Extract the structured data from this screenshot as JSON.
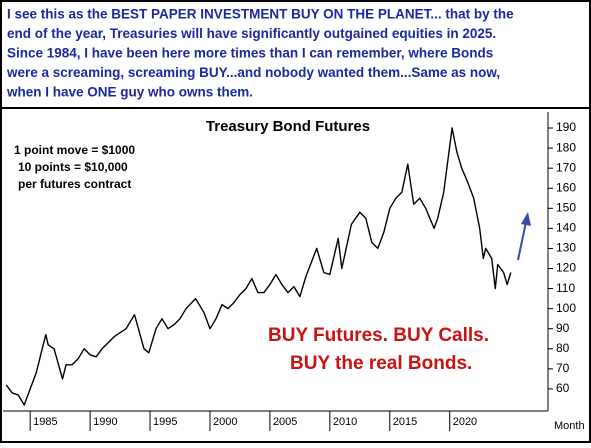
{
  "header": {
    "lines": [
      "I see this as the BEST PAPER INVESTMENT BUY ON THE PLANET... that by the",
      "end of the year, Treasuries will have significantly outgained equities in 2025.",
      "Since 1984, I have been here more times than I can remember, where Bonds",
      "were a screaming, screaming BUY...and nobody wanted them...Same as now,",
      "when I have ONE guy who owns them."
    ]
  },
  "chart_data": {
    "type": "line",
    "title": "Treasury Bond Futures",
    "x_label": "Month",
    "annotations": [
      "1 point move = $1000",
      "10 points = $10,000",
      "per futures contract",
      "BUY Futures. BUY Calls.",
      "BUY the real Bonds."
    ],
    "x": [
      1983.0,
      1983.5,
      1984.0,
      1984.5,
      1985.0,
      1985.5,
      1986.0,
      1986.3,
      1986.5,
      1987.0,
      1987.7,
      1988.0,
      1988.5,
      1989.0,
      1989.5,
      1990.0,
      1990.5,
      1991.0,
      1991.5,
      1992.0,
      1992.5,
      1993.0,
      1993.7,
      1994.5,
      1994.9,
      1995.5,
      1996.0,
      1996.5,
      1997.0,
      1997.5,
      1998.0,
      1998.8,
      1999.5,
      2000.0,
      2000.5,
      2001.0,
      2001.5,
      2002.0,
      2002.5,
      2003.0,
      2003.5,
      2004.0,
      2004.5,
      2005.0,
      2005.5,
      2006.0,
      2006.5,
      2007.0,
      2007.5,
      2008.0,
      2008.9,
      2009.5,
      2010.0,
      2010.7,
      2011.0,
      2011.8,
      2012.5,
      2013.0,
      2013.5,
      2014.0,
      2014.5,
      2015.0,
      2015.5,
      2016.0,
      2016.5,
      2017.0,
      2017.5,
      2018.0,
      2018.7,
      2019.0,
      2019.5,
      2020.2,
      2020.6,
      2021.0,
      2021.5,
      2022.0,
      2022.5,
      2022.8,
      2023.0,
      2023.5,
      2023.8,
      2024.0,
      2024.5,
      2024.8,
      2025.1
    ],
    "series": [
      {
        "name": "Treasury Bond Futures",
        "color": "#000000",
        "values": [
          62,
          58,
          57,
          52,
          60,
          68,
          80,
          87,
          82,
          80,
          65,
          72,
          72,
          75,
          80,
          77,
          76,
          80,
          83,
          86,
          88,
          90,
          97,
          80,
          78,
          90,
          95,
          90,
          92,
          95,
          100,
          105,
          98,
          90,
          95,
          102,
          100,
          103,
          107,
          110,
          115,
          108,
          108,
          112,
          117,
          112,
          108,
          111,
          106,
          116,
          130,
          118,
          117,
          135,
          120,
          142,
          148,
          145,
          133,
          130,
          138,
          150,
          155,
          158,
          172,
          152,
          155,
          150,
          140,
          145,
          158,
          190,
          178,
          170,
          163,
          155,
          140,
          125,
          130,
          125,
          110,
          122,
          118,
          112,
          118
        ]
      }
    ],
    "xlim": [
      1982.9,
      2028.2
    ],
    "ylim": [
      49,
      195
    ],
    "xticks": [
      1985,
      1990,
      1995,
      2000,
      2005,
      2010,
      2015,
      2020
    ],
    "yticks": [
      60,
      70,
      80,
      90,
      100,
      110,
      120,
      130,
      140,
      150,
      160,
      170,
      180,
      190
    ],
    "y_axis_side": "right",
    "grid": false
  }
}
